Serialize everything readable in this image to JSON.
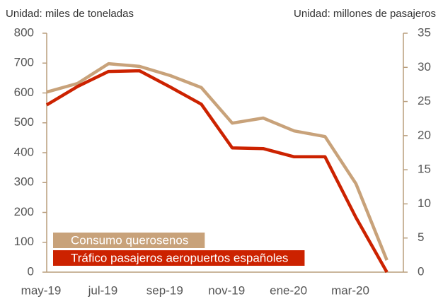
{
  "chart_data": {
    "type": "line",
    "y_label": "Unidad: miles de toneladas",
    "y2_label": "Unidad: millones de pasajeros",
    "categories": [
      "may-19",
      null,
      "jul-19",
      null,
      "sep-19",
      null,
      "nov-19",
      null,
      "ene-20",
      null,
      "mar-20",
      null
    ],
    "series": [
      {
        "name": "Consumo querosenos",
        "color": "#c8a27a",
        "values": [
          603,
          632,
          698,
          689,
          658,
          618,
          499,
          516,
          473,
          454,
          296,
          40
        ]
      },
      {
        "name": "Tráfico pasajeros aeropuertos españoles",
        "color": "#cc2200",
        "axis": "y2",
        "values": [
          24.5,
          27.2,
          29.4,
          29.5,
          27.1,
          24.6,
          18.2,
          18.1,
          16.9,
          16.9,
          8.0,
          0
        ]
      }
    ],
    "ylim": [
      0,
      800
    ],
    "yticks": [
      0,
      100,
      200,
      300,
      400,
      500,
      600,
      700,
      800
    ],
    "y2lim": [
      0,
      35
    ],
    "y2ticks": [
      0,
      5,
      10,
      15,
      20,
      25,
      30,
      35
    ],
    "grid": false,
    "legend": "lower left"
  }
}
